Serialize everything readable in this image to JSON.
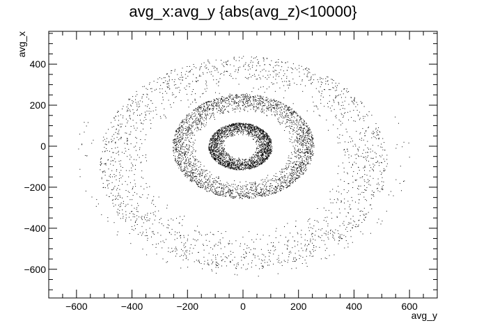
{
  "chart_data": {
    "type": "scatter",
    "title": "avg_x:avg_y {abs(avg_z)<10000}",
    "xlabel": "avg_y",
    "ylabel": "avg_x",
    "xlim": [
      -700,
      700
    ],
    "ylim": [
      -740,
      560
    ],
    "xticks": [
      -600,
      -400,
      -200,
      0,
      200,
      400,
      600
    ],
    "xtick_labels": [
      "−600",
      "−400",
      "−200",
      "0",
      "200",
      "400",
      "600"
    ],
    "yticks": [
      -600,
      -400,
      -200,
      0,
      200,
      400
    ],
    "ytick_labels": [
      "−600",
      "−400",
      "−200",
      "0",
      "200",
      "400"
    ],
    "grid": false,
    "marker_color": "#000000",
    "series": [
      {
        "structure": [
          {
            "shape": "ring",
            "center": [
              -10,
              0
            ],
            "r_min": 55,
            "r_max": 115,
            "points": 2200
          },
          {
            "shape": "ring",
            "center": [
              0,
              0
            ],
            "r_min": 165,
            "r_max": 255,
            "points": 2600
          },
          {
            "shape": "ring",
            "center": [
              0,
              -80
            ],
            "r_min": 330,
            "r_max": 520,
            "points": 1800
          },
          {
            "shape": "arc",
            "center": [
              0,
              -40
            ],
            "r_min": 540,
            "r_max": 600,
            "angle_deg": [
              -200,
              20
            ],
            "points": 90
          }
        ]
      }
    ]
  }
}
